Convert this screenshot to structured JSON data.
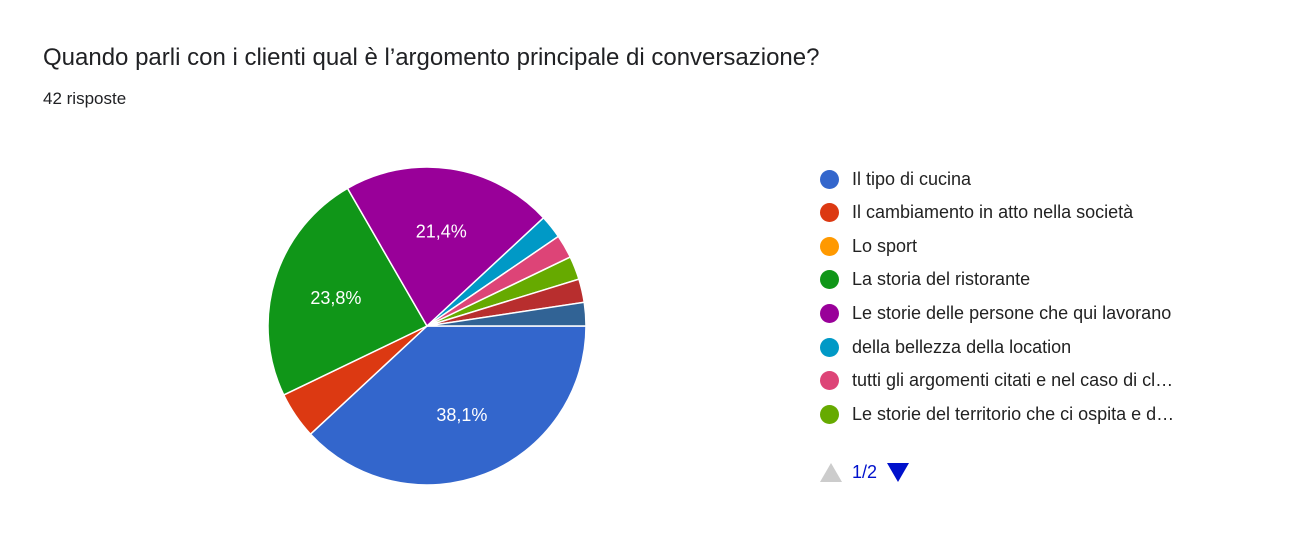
{
  "title": "Quando parli con i clienti qual è l’argomento principale di conversazione?",
  "subtitle": "42 risposte",
  "chart_data": {
    "type": "pie",
    "start": "3 o'clock, clockwise",
    "slices": [
      {
        "name": "Il tipo di cucina",
        "value": 16,
        "label": "38,1%",
        "color": "#3366cc"
      },
      {
        "name": "Il cambiamento in atto nella società",
        "value": 2,
        "label": "",
        "color": "#dc3912"
      },
      {
        "name": "Lo sport",
        "value": 0,
        "label": "",
        "color": "#ff9900"
      },
      {
        "name": "La storia del ristorante",
        "value": 10,
        "label": "23,8%",
        "color": "#109618"
      },
      {
        "name": "Le storie delle persone che qui lavorano",
        "value": 9,
        "label": "21,4%",
        "color": "#990099"
      },
      {
        "name": "della bellezza della location",
        "value": 1,
        "label": "",
        "color": "#0099c6"
      },
      {
        "name": "tutti gli argomenti citati e nel caso di cl…",
        "value": 1,
        "label": "",
        "color": "#dd4477"
      },
      {
        "name": "Le storie del territorio che ci ospita e d…",
        "value": 1,
        "label": "",
        "color": "#66aa00"
      },
      {
        "name": "",
        "value": 1,
        "label": "",
        "color": "#b82e2e"
      },
      {
        "name": "",
        "value": 1,
        "label": "",
        "color": "#316395"
      }
    ],
    "legend": "right",
    "legend_visible_count": 8
  },
  "pager": {
    "text": "1/2"
  }
}
